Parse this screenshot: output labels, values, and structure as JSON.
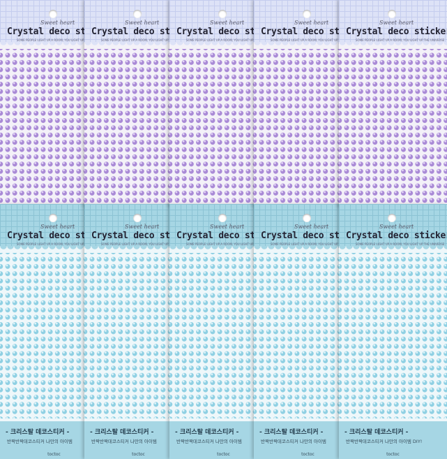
{
  "image": {
    "subject": "Crystal deco sticker sheets",
    "rows": [
      {
        "name": "purple-row",
        "gem_color": "#a98ad6",
        "gem_highlight": "#e4d6f7",
        "header_color": "#dde2f7",
        "grid_color": "#c5cdee",
        "sheet_color": "#f3f1f8",
        "packs": [
          {
            "script": "Sweet heart",
            "title": "Crystal deco sti",
            "tagline": "SOME PEOPLE LIGHT UP A ROOM, YOU LIGHT UP THE"
          },
          {
            "script": "Sweet heart",
            "title": "Crystal deco sti",
            "tagline": "SOME PEOPLE LIGHT UP A ROOM, YOU LIGHT UP THE"
          },
          {
            "script": "Sweet heart",
            "title": "Crystal deco sti",
            "tagline": "SOME PEOPLE LIGHT UP A ROOM, YOU LIGHT UP THE"
          },
          {
            "script": "Sweet heart",
            "title": "Crystal deco sti",
            "tagline": "SOME PEOPLE LIGHT UP A ROOM, YOU LIGHT UP THE"
          },
          {
            "script": "Sweet heart",
            "title": "Crystal deco sticker",
            "tagline": "SOME PEOPLE LIGHT UP A ROOM, YOU LIGHT UP THE UNIVERSE"
          }
        ]
      },
      {
        "name": "blue-row",
        "gem_color": "#8fd0e3",
        "gem_highlight": "#e0f4fa",
        "header_color": "#a6d6e4",
        "grid_color": "#8cc3d4",
        "sheet_color": "#eef7fa",
        "packs": [
          {
            "script": "Sweet heart",
            "title": "Crystal deco sti",
            "tagline": "SOME PEOPLE LIGHT UP A ROOM, YOU LIGHT UP THE",
            "footer_title": "- 크리스탈 데코스티커 -",
            "footer_sub": "반짝반짝데코스티커 나만의 아이템",
            "footer_brand": "toctoc"
          },
          {
            "script": "Sweet heart",
            "title": "Crystal deco sti",
            "tagline": "SOME PEOPLE LIGHT UP A ROOM, YOU LIGHT UP THE",
            "footer_title": "- 크리스탈 데코스티커 -",
            "footer_sub": "반짝반짝데코스티커 나만의 아이템",
            "footer_brand": "toctoc"
          },
          {
            "script": "Sweet heart",
            "title": "Crystal deco sti",
            "tagline": "SOME PEOPLE LIGHT UP A ROOM, YOU LIGHT UP THE",
            "footer_title": "- 크리스탈 데코스티커 -",
            "footer_sub": "반짝반짝데코스티커 나만의 아이템",
            "footer_brand": "toctoc"
          },
          {
            "script": "Sweet heart",
            "title": "Crystal deco sti",
            "tagline": "SOME PEOPLE LIGHT UP A ROOM, YOU LIGHT UP THE",
            "footer_title": "- 크리스탈 데코스티커 -",
            "footer_sub": "반짝반짝데코스티커 나만의 아이템",
            "footer_brand": "toctoc"
          },
          {
            "script": "Sweet heart",
            "title": "Crystal deco sticker",
            "tagline": "SOME PEOPLE LIGHT UP A ROOM, YOU LIGHT UP THE UNIVERSE",
            "footer_title": "- 크리스탈 데코스티커 -",
            "footer_sub": "반짝반짝데코스티커 나만의 아이템 DIY!",
            "footer_brand": "toctoc"
          }
        ]
      }
    ]
  }
}
